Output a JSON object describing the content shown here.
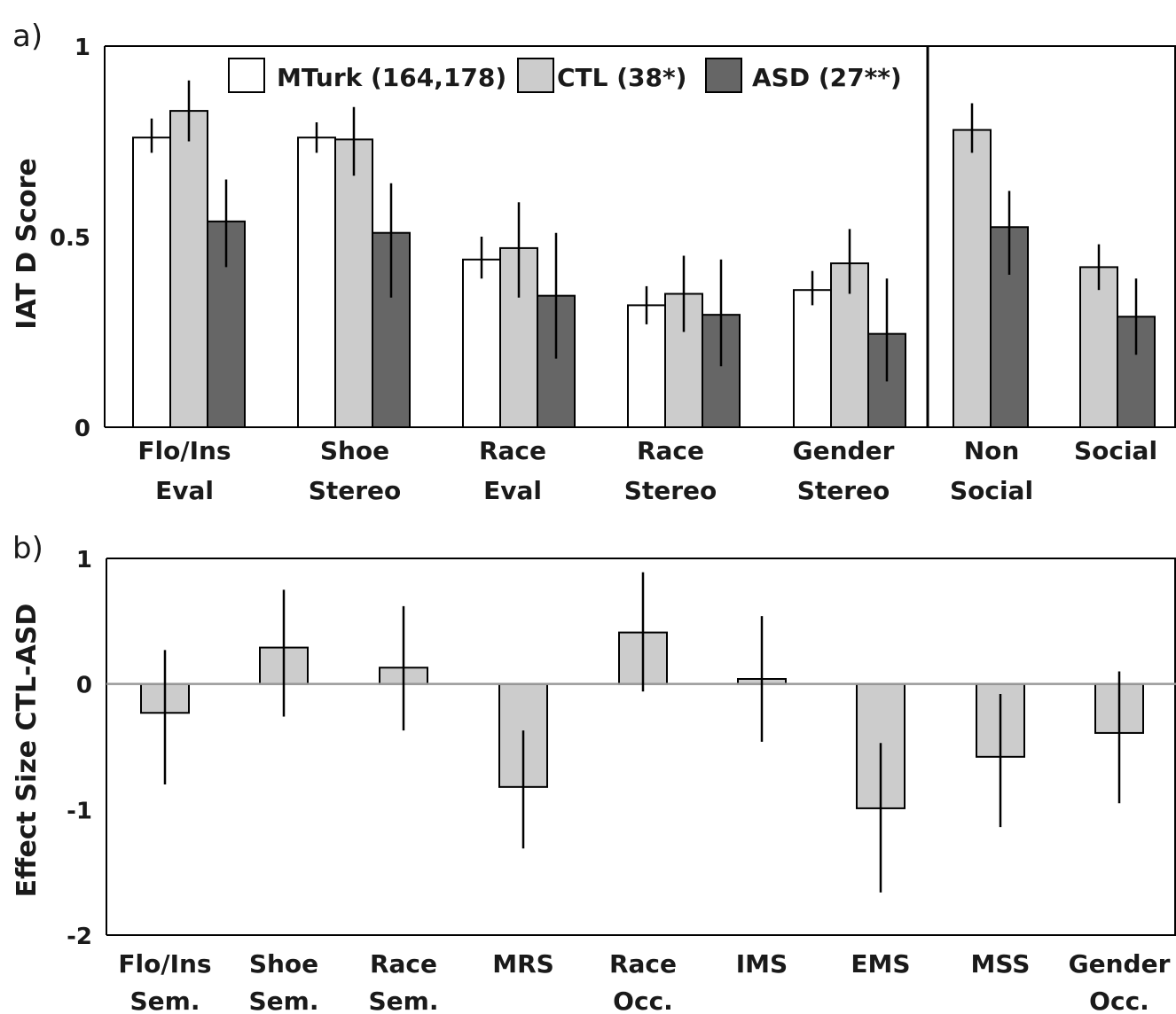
{
  "chart_data": [
    {
      "panel_label": "a)",
      "type": "bar",
      "ylabel": "IAT D Score",
      "ylim": [
        0,
        1
      ],
      "yticks": [
        "0",
        "0.5",
        "1"
      ],
      "legend": {
        "placement": "top",
        "entries": [
          "MTurk (164,178)",
          "CTL (38*)",
          "ASD (27**)"
        ]
      },
      "groups": [
        {
          "label": [
            "Flo/Ins",
            "Eval"
          ]
        },
        {
          "label": [
            "Shoe",
            "Stereo"
          ]
        },
        {
          "label": [
            "Race",
            "Eval"
          ]
        },
        {
          "label": [
            "Race",
            "Stereo"
          ]
        },
        {
          "label": [
            "Gender",
            "Stereo"
          ]
        },
        {
          "label": [
            "Non",
            "Social"
          ]
        },
        {
          "label": [
            "Social"
          ]
        }
      ],
      "series": [
        {
          "name": "MTurk (164,178)",
          "color": "#ffffff",
          "values": [
            0.76,
            0.76,
            0.44,
            0.32,
            0.36,
            null,
            null
          ],
          "err_lo": [
            0.72,
            0.72,
            0.39,
            0.27,
            0.32,
            null,
            null
          ],
          "err_hi": [
            0.81,
            0.8,
            0.5,
            0.37,
            0.41,
            null,
            null
          ]
        },
        {
          "name": "CTL (38*)",
          "color": "#cccccc",
          "values": [
            0.83,
            0.755,
            0.47,
            0.35,
            0.43,
            0.78,
            0.42
          ],
          "err_lo": [
            0.75,
            0.66,
            0.34,
            0.25,
            0.35,
            0.72,
            0.36
          ],
          "err_hi": [
            0.91,
            0.84,
            0.59,
            0.45,
            0.52,
            0.85,
            0.48
          ]
        },
        {
          "name": "ASD (27**)",
          "color": "#666666",
          "values": [
            0.54,
            0.51,
            0.345,
            0.295,
            0.245,
            0.525,
            0.29
          ],
          "err_lo": [
            0.42,
            0.34,
            0.18,
            0.16,
            0.12,
            0.4,
            0.19
          ],
          "err_hi": [
            0.65,
            0.64,
            0.51,
            0.44,
            0.39,
            0.62,
            0.39
          ]
        }
      ]
    },
    {
      "panel_label": "b)",
      "type": "bar",
      "ylabel": "Effect Size CTL-ASD",
      "ylim": [
        -2,
        1
      ],
      "yticks": [
        "1",
        "0",
        "-1",
        "-2"
      ],
      "categories": [
        [
          "Flo/Ins",
          "Sem."
        ],
        [
          "Shoe",
          "Sem."
        ],
        [
          "Race",
          "Sem."
        ],
        [
          "MRS"
        ],
        [
          "Race",
          "Occ."
        ],
        [
          "IMS"
        ],
        [
          "EMS"
        ],
        [
          "MSS"
        ],
        [
          "Gender",
          "Occ."
        ]
      ],
      "series": [
        {
          "color": "#cccccc",
          "values": [
            -0.23,
            0.29,
            0.13,
            -0.82,
            0.41,
            0.04,
            -0.99,
            -0.58,
            -0.39
          ],
          "err_lo": [
            -0.8,
            -0.26,
            -0.37,
            -1.31,
            -0.06,
            -0.46,
            -1.66,
            -1.14,
            -0.95
          ],
          "err_hi": [
            0.27,
            0.75,
            0.62,
            -0.37,
            0.89,
            0.54,
            -0.47,
            -0.08,
            0.1
          ]
        }
      ]
    }
  ]
}
